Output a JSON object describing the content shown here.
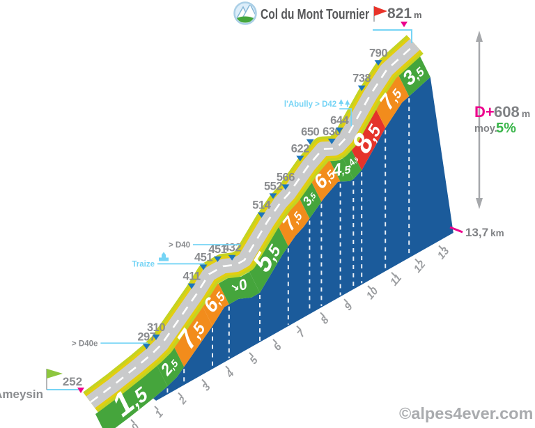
{
  "title": {
    "badge_icon": "mountain-badge",
    "name": "Col du Mont Tournier",
    "summit_elev": "821",
    "summit_unit": "m"
  },
  "start": {
    "name": "Ameysin",
    "elev": "252"
  },
  "stats": {
    "dplus_label": "D+",
    "dplus_value": "608",
    "dplus_unit": "m",
    "avg_label": "moy.",
    "avg_value": "5%",
    "distance_value": "13,7",
    "distance_unit": "km"
  },
  "watermark": "©alpes4ever.com",
  "chart_data": {
    "type": "area",
    "title": "Col du Mont Tournier",
    "x_unit": "km",
    "y_unit": "m",
    "distance_km": 13.7,
    "start_elevation_m": 252,
    "summit_elevation_m": 821,
    "total_ascent_m": 608,
    "avg_gradient_pct": 5.0,
    "x_ticks": [
      0,
      1,
      2,
      3,
      4,
      5,
      6,
      7,
      8,
      9,
      10,
      11,
      12,
      13
    ],
    "profile_points": [
      [
        0,
        252
      ],
      [
        1,
        266
      ],
      [
        2,
        284
      ],
      [
        2.6,
        297
      ],
      [
        3.0,
        310
      ],
      [
        4.5,
        411
      ],
      [
        5.0,
        451
      ],
      [
        5.6,
        451
      ],
      [
        6.15,
        432
      ],
      [
        6.5,
        432
      ],
      [
        7.45,
        514
      ],
      [
        8.0,
        552
      ],
      [
        8.35,
        566
      ],
      [
        9.2,
        622
      ],
      [
        9.8,
        650
      ],
      [
        10.3,
        630
      ],
      [
        10.45,
        630
      ],
      [
        10.8,
        644
      ],
      [
        11.8,
        738
      ],
      [
        12.5,
        790
      ],
      [
        13.7,
        821
      ]
    ],
    "segments": [
      {
        "from_km": 0.0,
        "to_km": 2.6,
        "label": "1,5",
        "grade_pct": 1.5,
        "color": "green",
        "descent": false,
        "size": 46
      },
      {
        "from_km": 2.6,
        "to_km": 3.3,
        "label": "2,5",
        "grade_pct": 2.5,
        "color": "green",
        "descent": false,
        "size": 23
      },
      {
        "from_km": 3.3,
        "to_km": 4.5,
        "label": "7,5",
        "grade_pct": 7.5,
        "color": "orange",
        "descent": false,
        "size": 38
      },
      {
        "from_km": 4.5,
        "to_km": 5.2,
        "label": "6,5",
        "grade_pct": 6.5,
        "color": "orange",
        "descent": false,
        "size": 29
      },
      {
        "from_km": 5.2,
        "to_km": 6.5,
        "label": "0",
        "grade_pct": 0,
        "color": "green",
        "descent": true,
        "size": 21
      },
      {
        "from_km": 6.5,
        "to_km": 7.7,
        "label": "5,5",
        "grade_pct": 5.5,
        "color": "green",
        "descent": false,
        "size": 38
      },
      {
        "from_km": 7.7,
        "to_km": 8.6,
        "label": "7,5",
        "grade_pct": 7.5,
        "color": "orange",
        "descent": false,
        "size": 27
      },
      {
        "from_km": 8.6,
        "to_km": 9.1,
        "label": "3,5",
        "grade_pct": 3.5,
        "color": "green",
        "descent": false,
        "size": 18
      },
      {
        "from_km": 9.1,
        "to_km": 9.9,
        "label": "6,5",
        "grade_pct": 6.5,
        "color": "orange",
        "descent": false,
        "size": 28
      },
      {
        "from_km": 9.9,
        "to_km": 10.45,
        "label": "4,5",
        "grade_pct": 4.5,
        "color": "green",
        "descent": false,
        "size": 25
      },
      {
        "from_km": 10.45,
        "to_km": 10.8,
        "label": "4,5",
        "grade_pct": 4.5,
        "color": "green",
        "descent": true,
        "size": 13
      },
      {
        "from_km": 10.8,
        "to_km": 11.8,
        "label": "8,5",
        "grade_pct": 8.5,
        "color": "red",
        "descent": false,
        "size": 40
      },
      {
        "from_km": 11.8,
        "to_km": 12.8,
        "label": "7,5",
        "grade_pct": 7.5,
        "color": "orange",
        "descent": false,
        "size": 30
      },
      {
        "from_km": 12.8,
        "to_km": 13.7,
        "label": "3,5",
        "grade_pct": 3.5,
        "color": "green",
        "descent": false,
        "size": 28
      }
    ],
    "elevation_markers": [
      {
        "km": 2.6,
        "label": "297",
        "dx": 0
      },
      {
        "km": 3.0,
        "label": "310",
        "dx": 0
      },
      {
        "km": 4.5,
        "label": "411",
        "dx": 0
      },
      {
        "km": 5.0,
        "label": "451",
        "dx": 0
      },
      {
        "km": 5.6,
        "label": "451",
        "dx": 0
      },
      {
        "km": 6.15,
        "label": "432",
        "dx": 2
      },
      {
        "km": 7.45,
        "label": "514",
        "dx": 0
      },
      {
        "km": 8.0,
        "label": "552",
        "dx": -2
      },
      {
        "km": 8.35,
        "label": "566",
        "dx": 4
      },
      {
        "km": 9.2,
        "label": "622",
        "dx": -4
      },
      {
        "km": 9.8,
        "label": "650",
        "dx": -10
      },
      {
        "km": 10.3,
        "label": "630",
        "dx": 4
      },
      {
        "km": 10.8,
        "label": "644",
        "dx": -2
      },
      {
        "km": 11.8,
        "label": "738",
        "dx": -4
      },
      {
        "km": 12.5,
        "label": "790",
        "dx": -4
      }
    ],
    "waypoints": [
      {
        "label": "> D40e",
        "km": 2.6,
        "color": "gray",
        "icon": null
      },
      {
        "label": "Traize",
        "km": 5.0,
        "color": "cyan",
        "icon": "village-icon"
      },
      {
        "label": "> D40",
        "km": 6.5,
        "color": "gray",
        "icon": null
      },
      {
        "label": "l'Abully > D42",
        "km": 10.8,
        "color": "cyan",
        "icon": "trees-icon"
      }
    ],
    "palette": {
      "green": "#45a53c",
      "orange": "#f28c1c",
      "red": "#e5332a",
      "face_blue": "#1b5b9b",
      "road": "#c9cacb",
      "road_edge_outer": "#c5d321",
      "road_edge_inner": "#e3ce10",
      "road_dash": "#ffffff",
      "km_dash": "#ffffff",
      "cyan": "#76d4f5",
      "magenta": "#ec008c",
      "marker_blue": "#1c75bc",
      "gray_text": "#8a8c8f",
      "tick_gray": "#9b9da0",
      "title_gray": "#57585a",
      "stat_green": "#39b54a",
      "watermark_gray": "#a9abae",
      "flag_red": "#e8332a",
      "flag_green": "#8dc63f",
      "arrow_gray": "#a6a8ab"
    }
  }
}
